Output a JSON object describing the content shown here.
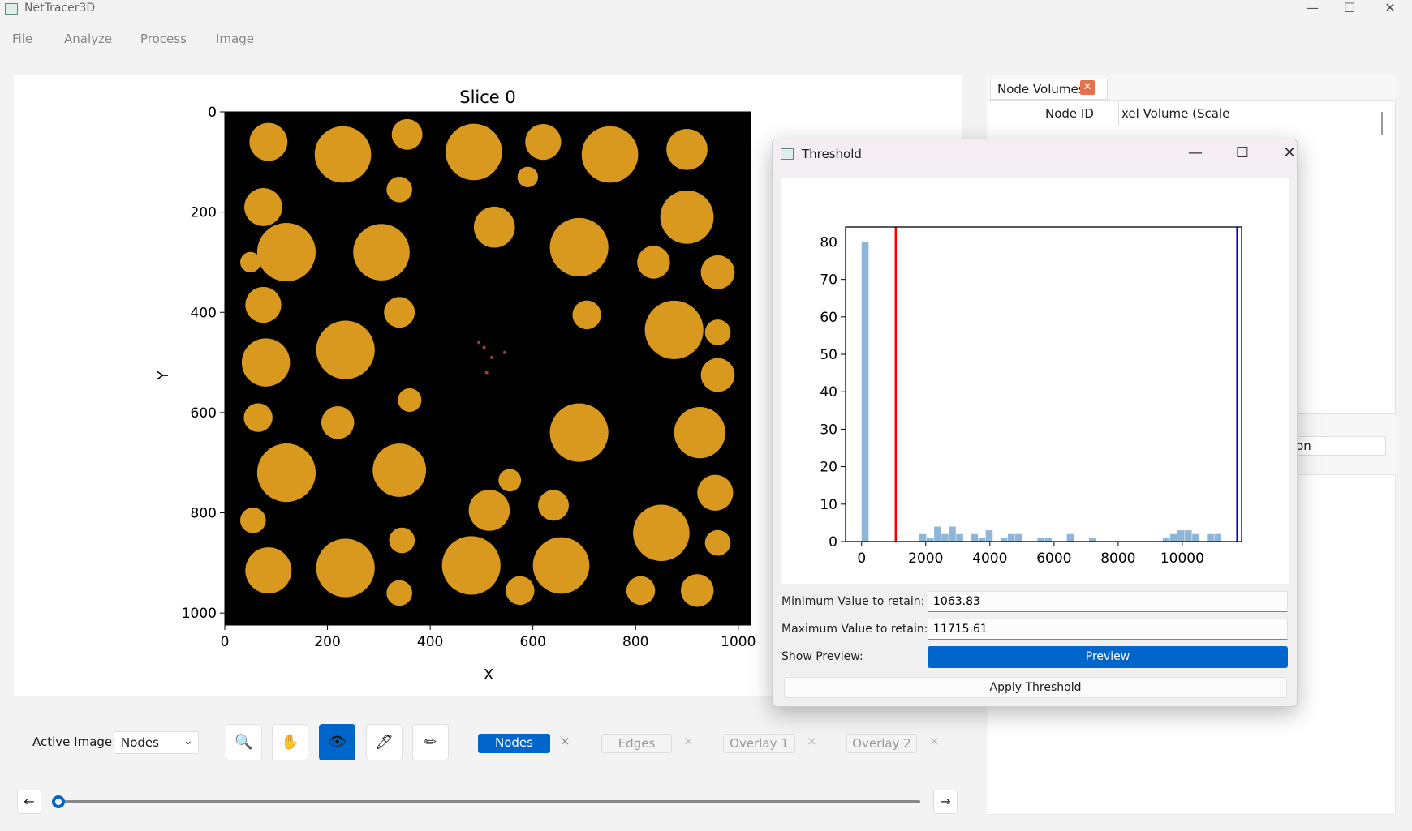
{
  "window": {
    "title": "NetTracer3D",
    "minimize": "—",
    "maximize": "☐",
    "close": "✕"
  },
  "menu": [
    "File",
    "Analyze",
    "Process",
    "Image"
  ],
  "plot": {
    "title": "Slice 0",
    "xlabel": "X",
    "ylabel": "Y",
    "xticks": [
      "0",
      "200",
      "400",
      "600",
      "800",
      "1000"
    ],
    "yticks": [
      "0",
      "200",
      "400",
      "600",
      "800",
      "1000"
    ],
    "background": "#000000",
    "blob_color": "#d8991e",
    "dot_color": "#a83a3a"
  },
  "right_panel": {
    "tab_label": "Node Volumes",
    "tab_close": "✕",
    "col_headers": [
      "Node ID",
      "xel Volume (Scale"
    ],
    "partial_button": "tion"
  },
  "dialog": {
    "title": "Threshold",
    "min_label": "Minimum Value to retain:",
    "min_value": "1063.83",
    "max_label": "Maximum Value to retain:",
    "max_value": "11715.61",
    "preview_label": "Show Preview:",
    "preview_button": "Preview",
    "apply_button": "Apply Threshold"
  },
  "chart_data": {
    "type": "bar",
    "title": "",
    "xlabel": "",
    "ylabel": "",
    "xlim": [
      -500,
      11850
    ],
    "ylim": [
      0,
      84
    ],
    "xticks": [
      0,
      2000,
      4000,
      6000,
      8000,
      10000
    ],
    "yticks": [
      0,
      10,
      20,
      30,
      40,
      50,
      60,
      70,
      80
    ],
    "bin_width": 230,
    "x": [
      0,
      1800,
      2030,
      2260,
      2490,
      2720,
      2950,
      3410,
      3640,
      3870,
      4330,
      4560,
      4790,
      5480,
      5710,
      6400,
      7090,
      9390,
      9620,
      9850,
      10080,
      10310,
      10770,
      11000
    ],
    "values": [
      80,
      2,
      1,
      4,
      2,
      4,
      2,
      2,
      1,
      3,
      1,
      2,
      2,
      1,
      1,
      2,
      1,
      1,
      2,
      3,
      3,
      2,
      2,
      2
    ],
    "bar_color": "#8fb6d8",
    "min_line": {
      "x": 1063.83,
      "color": "#ff0000"
    },
    "max_line": {
      "x": 11715.61,
      "color": "#0000dd"
    }
  },
  "toolbar": {
    "active_label": "Active Image:",
    "active_value": "Nodes",
    "caret": "⌄",
    "tools": [
      "🔍",
      "✋",
      "👁",
      "🖊",
      "✏"
    ],
    "channels": [
      "Nodes",
      "Edges",
      "Overlay 1",
      "Overlay 2"
    ],
    "channel_close": "×",
    "prev": "←",
    "next": "→"
  }
}
